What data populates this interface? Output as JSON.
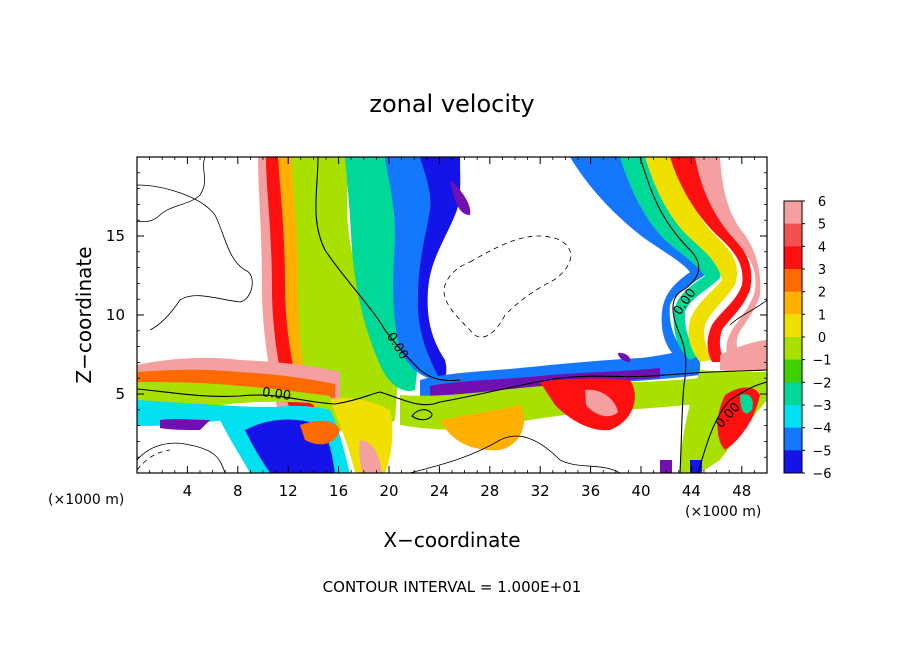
{
  "chart_data": {
    "type": "heatmap",
    "title": "zonal velocity",
    "xlabel": "X−coordinate",
    "ylabel": "Z−coordinate",
    "x_unit_left": "(×1000 m)",
    "x_unit_right": "(×1000 m)",
    "xlim": [
      0,
      50
    ],
    "ylim": [
      0,
      20
    ],
    "x_ticks": [
      4,
      8,
      12,
      16,
      20,
      24,
      28,
      32,
      36,
      40,
      44,
      48
    ],
    "y_ticks": [
      5,
      10,
      15
    ],
    "x_tick_labels": [
      "4",
      "8",
      "12",
      "16",
      "20",
      "24",
      "28",
      "32",
      "36",
      "40",
      "44",
      "48"
    ],
    "y_tick_labels": [
      "5",
      "10",
      "15"
    ],
    "colorbar": {
      "levels": [
        6,
        5,
        4,
        3,
        2,
        1,
        0,
        -1,
        -2,
        -3,
        -4,
        -5,
        -6
      ],
      "labels": [
        "6",
        "5",
        "4",
        "3",
        "2",
        "1",
        "0",
        "−1",
        "−2",
        "−3",
        "−4",
        "−5",
        "−6"
      ],
      "colors": [
        "#f4a0a0",
        "#f45050",
        "#ff1010",
        "#ff6a00",
        "#ffb000",
        "#f0e000",
        "#a8e000",
        "#40d000",
        "#00d898",
        "#00e0f0",
        "#1478ff",
        "#1414e8",
        "#7010b0"
      ]
    },
    "contour_labels": [
      "0.00",
      "0.00",
      "0.00",
      "0.00"
    ],
    "footer": "CONTOUR INTERVAL = 1.000E+01"
  }
}
